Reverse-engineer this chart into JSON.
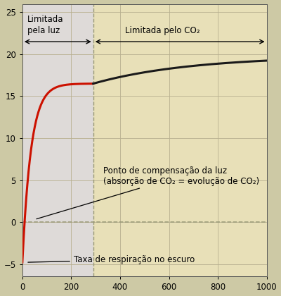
{
  "bg_color_outer": "#cdc9a5",
  "bg_color_right": "#e8e0b8",
  "bg_color_left": "#dedad8",
  "x_label": "",
  "y_label": "",
  "xlim": [
    0,
    1000
  ],
  "ylim": [
    -6.5,
    26
  ],
  "xticks": [
    0,
    200,
    400,
    600,
    800,
    1000
  ],
  "yticks": [
    -5,
    0,
    5,
    10,
    15,
    20,
    25
  ],
  "light_limit_x": 290,
  "label_limitada_luz": "Limitada\npela luz",
  "label_limitada_co2": "Limitada pelo CO₂",
  "label_ponto": "Ponto de compensação da luz\n(absorção de CO₂ = evolução de CO₂)",
  "label_taxa": "Taxa de respiração no escuro",
  "dashed_line_color": "#999977",
  "red_color": "#cc1100",
  "dark_color": "#1a1a1a",
  "grid_color": "#b8b090",
  "font_size_annot": 8.5,
  "font_size_ticks": 8.5
}
